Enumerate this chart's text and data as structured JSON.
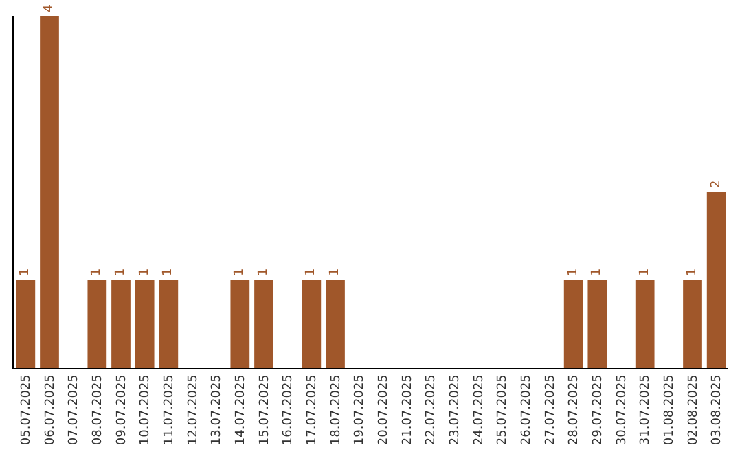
{
  "chart_data": {
    "type": "bar",
    "categories": [
      "05.07.2025",
      "06.07.2025",
      "07.07.2025",
      "08.07.2025",
      "09.07.2025",
      "10.07.2025",
      "11.07.2025",
      "12.07.2025",
      "13.07.2025",
      "14.07.2025",
      "15.07.2025",
      "16.07.2025",
      "17.07.2025",
      "18.07.2025",
      "19.07.2025",
      "20.07.2025",
      "21.07.2025",
      "22.07.2025",
      "23.07.2025",
      "24.07.2025",
      "25.07.2025",
      "26.07.2025",
      "27.07.2025",
      "28.07.2025",
      "29.07.2025",
      "30.07.2025",
      "31.07.2025",
      "01.08.2025",
      "02.08.2025",
      "03.08.2025"
    ],
    "values": [
      1,
      4,
      0,
      1,
      1,
      1,
      1,
      0,
      0,
      1,
      1,
      0,
      1,
      1,
      0,
      0,
      0,
      0,
      0,
      0,
      0,
      0,
      0,
      1,
      1,
      0,
      1,
      0,
      1,
      2
    ],
    "value_labels": [
      "1",
      "4",
      null,
      "1",
      "1",
      "1",
      "1",
      null,
      null,
      "1",
      "1",
      null,
      "1",
      "1",
      null,
      null,
      null,
      null,
      null,
      null,
      null,
      null,
      null,
      "1",
      "1",
      null,
      "1",
      null,
      "1",
      "2"
    ],
    "color": "#a0572a"
  }
}
